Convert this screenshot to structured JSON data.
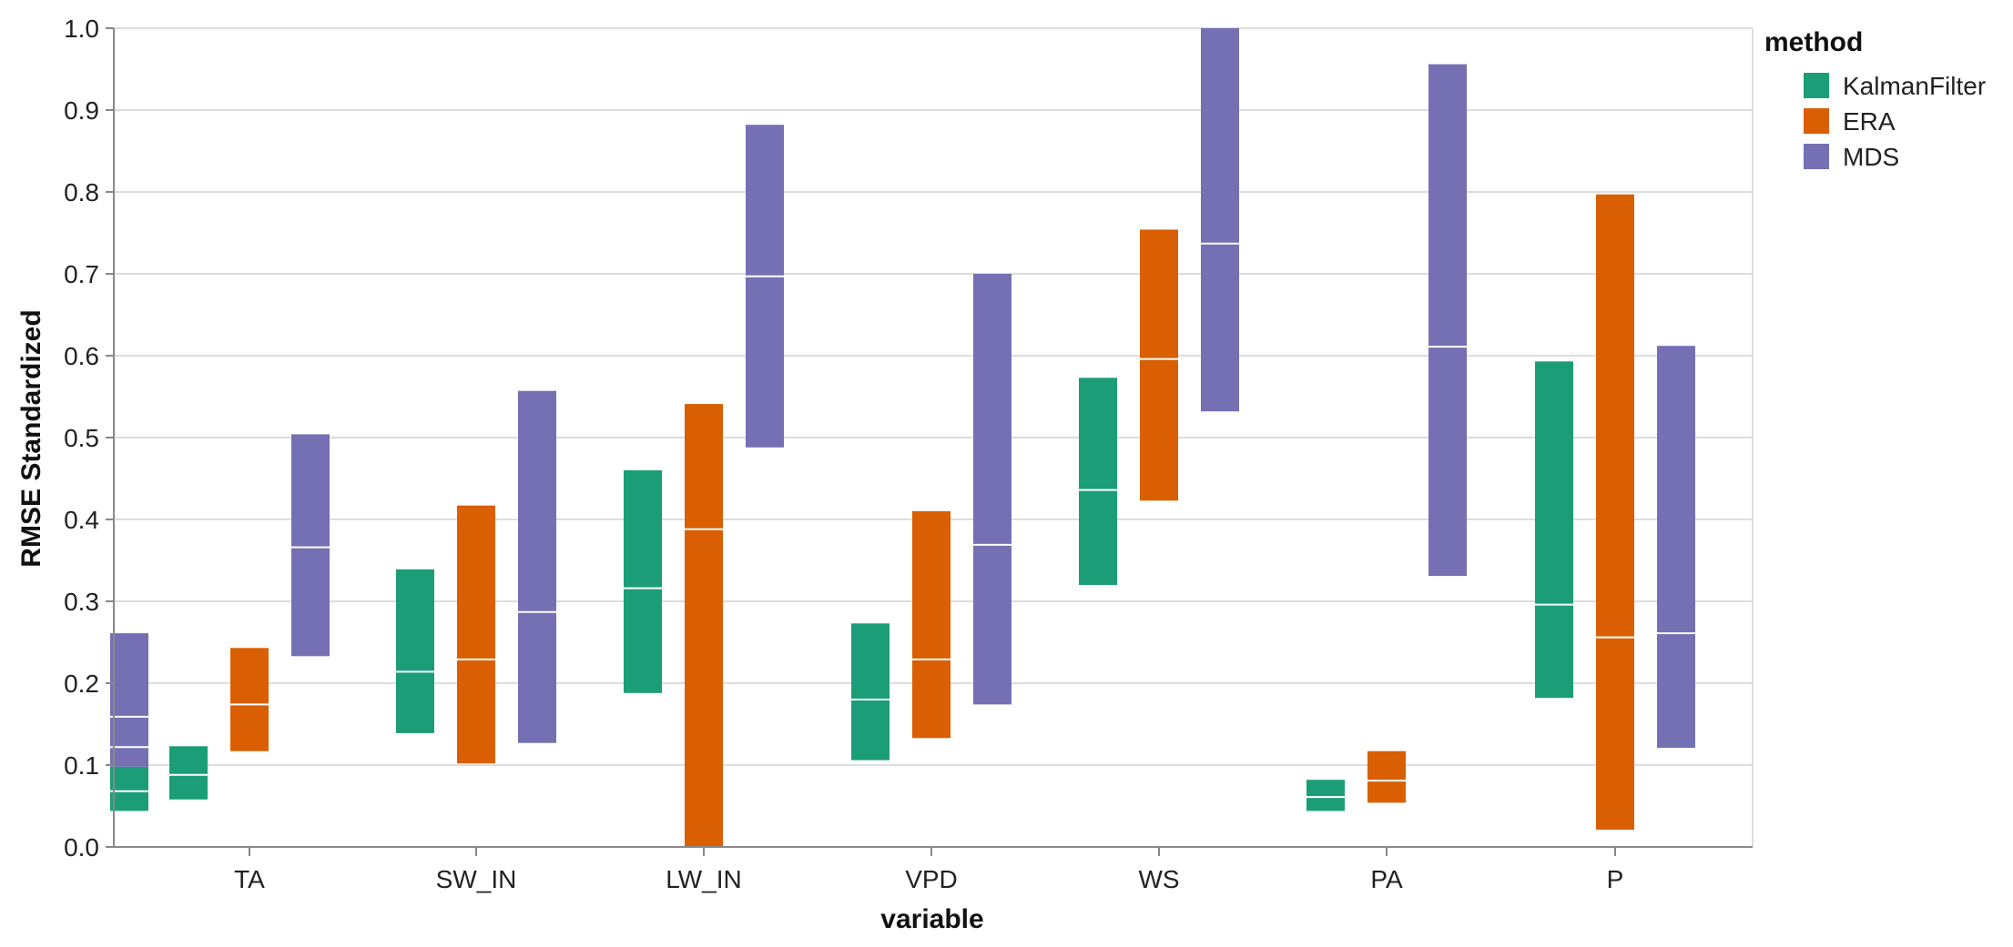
{
  "chart_data": {
    "type": "bar",
    "subtype": "floating range bars with median line",
    "xlabel": "variable",
    "ylabel": "RMSE Standardized",
    "ylim": [
      0,
      1.0
    ],
    "yticks": [
      "0.0",
      "0.1",
      "0.2",
      "0.3",
      "0.4",
      "0.5",
      "0.6",
      "0.7",
      "0.8",
      "0.9",
      "1.0"
    ],
    "grid": true,
    "categories": [
      "TA",
      "SW_IN",
      "LW_IN",
      "VPD",
      "WS",
      "PA",
      "P"
    ],
    "legend": {
      "title": "method",
      "position": "right",
      "entries": [
        {
          "name": "KalmanFilter",
          "color": "#1b9e77"
        },
        {
          "name": "ERA",
          "color": "#d95f02"
        },
        {
          "name": "MDS",
          "color": "#7570b3"
        }
      ]
    },
    "series": [
      {
        "name": "KalmanFilter",
        "ranges": [
          {
            "category": "TA",
            "low": 0.058,
            "high": 0.123,
            "median": 0.088
          },
          {
            "category": "SW_IN",
            "low": 0.139,
            "high": 0.339,
            "median": 0.214
          },
          {
            "category": "LW_IN",
            "low": 0.188,
            "high": 0.46,
            "median": 0.316
          },
          {
            "category": "VPD",
            "low": 0.106,
            "high": 0.273,
            "median": 0.18
          },
          {
            "category": "WS",
            "low": 0.32,
            "high": 0.573,
            "median": 0.436
          },
          {
            "category": "PA",
            "low": 0.044,
            "high": 0.082,
            "median": 0.061
          },
          {
            "category": "P",
            "low": 0.182,
            "high": 0.593,
            "median": 0.296
          }
        ]
      },
      {
        "name": "ERA",
        "ranges": [
          {
            "category": "TA",
            "low": 0.117,
            "high": 0.243,
            "median": 0.174
          },
          {
            "category": "SW_IN",
            "low": 0.102,
            "high": 0.417,
            "median": 0.229
          },
          {
            "category": "LW_IN",
            "low": 0.0,
            "high": 0.541,
            "median": 0.388
          },
          {
            "category": "VPD",
            "low": 0.133,
            "high": 0.41,
            "median": 0.229
          },
          {
            "category": "WS",
            "low": 0.423,
            "high": 0.754,
            "median": 0.596
          },
          {
            "category": "PA",
            "low": 0.054,
            "high": 0.117,
            "median": 0.081
          },
          {
            "category": "P",
            "low": 0.021,
            "high": 0.797,
            "median": 0.256
          }
        ]
      },
      {
        "name": "MDS",
        "ranges": [
          {
            "category": "TA",
            "low": 0.233,
            "high": 0.504,
            "median": 0.366
          },
          {
            "category": "SW_IN",
            "low": 0.127,
            "high": 0.557,
            "median": 0.287
          },
          {
            "category": "LW_IN",
            "low": 0.488,
            "high": 0.882,
            "median": 0.697
          },
          {
            "category": "VPD",
            "low": 0.174,
            "high": 0.7,
            "median": 0.369
          },
          {
            "category": "WS",
            "low": 0.532,
            "high": 1.0,
            "median": 0.737
          },
          {
            "category": "PA",
            "low": 0.331,
            "high": 0.956,
            "median": 0.611
          },
          {
            "category": "P",
            "low": 0.121,
            "high": 0.612,
            "median": 0.261
          }
        ]
      }
    ],
    "overlapping_marks_at_TA_left": [
      {
        "name": "KalmanFilter",
        "low": 0.044,
        "high": 0.098,
        "median": 0.068
      },
      {
        "name": "MDS",
        "low": 0.098,
        "high": 0.261,
        "median": 0.122,
        "extra_line": 0.159
      }
    ]
  }
}
